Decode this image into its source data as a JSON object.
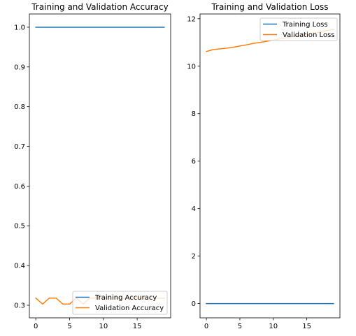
{
  "colors": {
    "training": "#1f77b4",
    "validation": "#ff7f0e"
  },
  "chart_data": [
    {
      "type": "line",
      "title": "Training and Validation Accuracy",
      "xlabel": "",
      "ylabel": "",
      "x": [
        0,
        1,
        2,
        3,
        4,
        5,
        6,
        7,
        8,
        9,
        10,
        11,
        12,
        13,
        14,
        15,
        16,
        17,
        18,
        19
      ],
      "xlim": [
        -0.95,
        19.95
      ],
      "ylim": [
        0.2683,
        1.0333
      ],
      "xticks": [
        0,
        5,
        10,
        15
      ],
      "yticks": [
        0.3,
        0.4,
        0.5,
        0.6,
        0.7,
        0.8,
        0.9,
        1.0
      ],
      "ytick_labels": [
        "0.3",
        "0.4",
        "0.5",
        "0.6",
        "0.7",
        "0.8",
        "0.9",
        "1.0"
      ],
      "grid": false,
      "legend_loc": "lower right",
      "series": [
        {
          "name": "Training Accuracy",
          "color_key": "training",
          "values": [
            1,
            1,
            1,
            1,
            1,
            1,
            1,
            1,
            1,
            1,
            1,
            1,
            1,
            1,
            1,
            1,
            1,
            1,
            1,
            1
          ]
        },
        {
          "name": "Validation Accuracy",
          "color_key": "validation",
          "values": [
            0.318,
            0.303,
            0.318,
            0.318,
            0.303,
            0.303,
            0.318,
            0.303,
            0.318,
            0.318,
            0.318,
            0.318,
            0.318,
            0.318,
            0.318,
            0.318,
            0.318,
            0.318,
            0.318,
            0.318
          ]
        }
      ]
    },
    {
      "type": "line",
      "title": "Training and Validation Loss",
      "xlabel": "",
      "ylabel": "",
      "x": [
        0,
        1,
        2,
        3,
        4,
        5,
        6,
        7,
        8,
        9,
        10,
        11,
        12,
        13,
        14,
        15,
        16,
        17,
        18,
        19
      ],
      "xlim": [
        -0.95,
        19.95
      ],
      "ylim": [
        -0.6,
        12.2
      ],
      "xticks": [
        0,
        5,
        10,
        15
      ],
      "yticks": [
        0,
        2,
        4,
        6,
        8,
        10,
        12
      ],
      "ytick_labels": [
        "0",
        "2",
        "4",
        "6",
        "8",
        "10",
        "12"
      ],
      "grid": false,
      "legend_loc": "upper right",
      "series": [
        {
          "name": "Training Loss",
          "color_key": "training",
          "values": [
            0,
            0,
            0,
            0,
            0,
            0,
            0,
            0,
            0,
            0,
            0,
            0,
            0,
            0,
            0,
            0,
            0,
            0,
            0,
            0
          ]
        },
        {
          "name": "Validation Loss",
          "color_key": "validation",
          "values": [
            10.62,
            10.7,
            10.73,
            10.76,
            10.8,
            10.85,
            10.9,
            10.96,
            11.0,
            11.05,
            11.1,
            11.15,
            11.2,
            11.25,
            11.3,
            11.35,
            11.4,
            11.45,
            11.5,
            11.55
          ]
        }
      ]
    }
  ]
}
